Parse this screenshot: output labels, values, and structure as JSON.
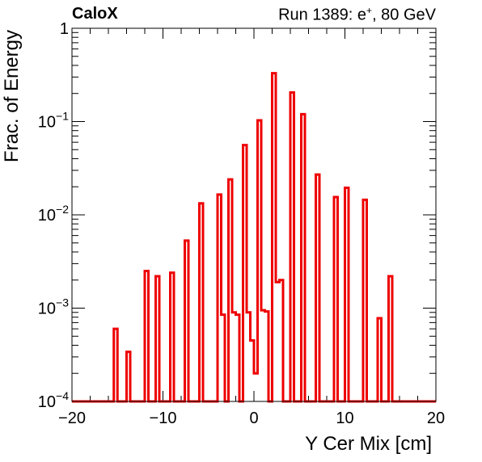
{
  "header": {
    "experiment": "CaloX",
    "run_prefix": "Run 1389: e",
    "run_charge": "+",
    "run_suffix": ", 80 GeV"
  },
  "chart_data": {
    "type": "bar",
    "style": "histogram-step",
    "xlabel": "Y Cer Mix [cm]",
    "ylabel": "Frac. of Energy",
    "xlim": [
      -20,
      20
    ],
    "ylim": [
      0.0001,
      1
    ],
    "yscale": "log",
    "x_ticks": [
      -20,
      -10,
      0,
      10,
      20
    ],
    "x_tick_labels": [
      "−20",
      "−10",
      "0",
      "10",
      "20"
    ],
    "y_ticks": [
      0.0001,
      0.001,
      0.01,
      0.1,
      1
    ],
    "y_tick_labels": [
      {
        "base": "10",
        "exp": "−4"
      },
      {
        "base": "10",
        "exp": "−3"
      },
      {
        "base": "10",
        "exp": "−2"
      },
      {
        "base": "10",
        "exp": "−1"
      },
      {
        "base": "1",
        "exp": ""
      }
    ],
    "line_color": "#ee0000",
    "bin_width": 0.4,
    "bins": [
      {
        "x": -15.2,
        "y": 0.0006
      },
      {
        "x": -13.8,
        "y": 0.00034
      },
      {
        "x": -11.8,
        "y": 0.0025
      },
      {
        "x": -10.6,
        "y": 0.0022
      },
      {
        "x": -9.0,
        "y": 0.0024
      },
      {
        "x": -7.4,
        "y": 0.0053
      },
      {
        "x": -5.8,
        "y": 0.0133
      },
      {
        "x": -3.8,
        "y": 0.0165
      },
      {
        "x": -3.4,
        "y": 0.00085
      },
      {
        "x": -2.6,
        "y": 0.024
      },
      {
        "x": -2.2,
        "y": 0.0009
      },
      {
        "x": -1.8,
        "y": 0.00085
      },
      {
        "x": -1.0,
        "y": 0.056
      },
      {
        "x": -0.6,
        "y": 0.0009
      },
      {
        "x": -0.2,
        "y": 0.00045
      },
      {
        "x": 0.2,
        "y": 0.0002
      },
      {
        "x": 0.6,
        "y": 0.103
      },
      {
        "x": 1.0,
        "y": 0.00095
      },
      {
        "x": 1.4,
        "y": 0.00092
      },
      {
        "x": 2.2,
        "y": 0.33
      },
      {
        "x": 2.6,
        "y": 0.0019
      },
      {
        "x": 3.0,
        "y": 0.002
      },
      {
        "x": 4.2,
        "y": 0.205
      },
      {
        "x": 5.4,
        "y": 0.12
      },
      {
        "x": 7.0,
        "y": 0.027
      },
      {
        "x": 9.0,
        "y": 0.0155
      },
      {
        "x": 10.2,
        "y": 0.0195
      },
      {
        "x": 12.2,
        "y": 0.0145
      },
      {
        "x": 13.8,
        "y": 0.00078
      },
      {
        "x": 15.0,
        "y": 0.0022
      }
    ]
  }
}
